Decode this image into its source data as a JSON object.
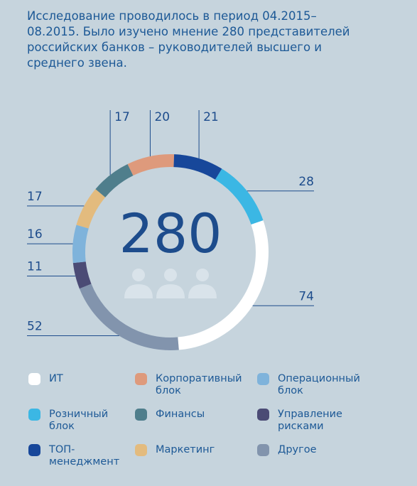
{
  "chart_data": {
    "type": "donut",
    "title": "Исследование проводилось в период 04.2015–08.2015. Было изучено мнение 280 представителей российских банков – руководителей высшего и среднего звена.",
    "total": 280,
    "categories": [
      "ИТ",
      "Корпоративный блок",
      "Операционный блок",
      "Розничный блок",
      "Финансы",
      "Управление рисками",
      "ТОП-менеджмент",
      "Маркетинг",
      "Другое"
    ],
    "values": [
      74,
      20,
      16,
      28,
      17,
      11,
      21,
      17,
      52
    ],
    "colors": [
      "#ffffff",
      "#de9a7c",
      "#7fb3db",
      "#3bb7e4",
      "#4f7e8c",
      "#4b4b75",
      "#17479a",
      "#e3bb7e",
      "#8294ad"
    ]
  }
}
